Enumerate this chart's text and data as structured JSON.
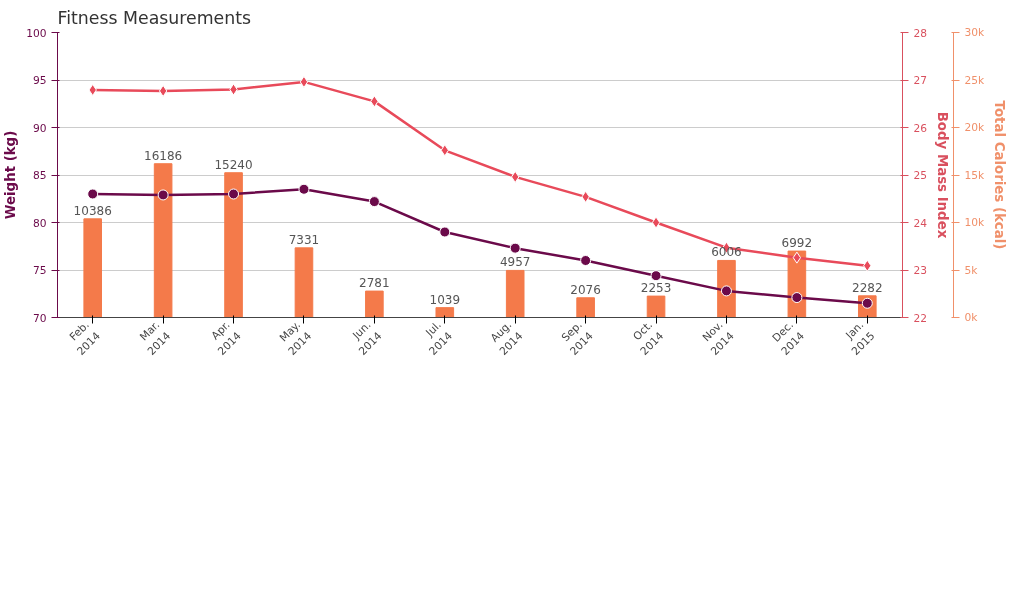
{
  "chart_data": {
    "type": "line",
    "title": "Fitness Measurements",
    "categories": [
      "Feb.\n2014",
      "Mar.\n2014",
      "Apr.\n2014",
      "May.\n2014",
      "Jun.\n2014",
      "Jul.\n2014",
      "Aug.\n2014",
      "Sep.\n2014",
      "Oct.\n2014",
      "Nov.\n2014",
      "Dec.\n2014",
      "Jan.\n2015"
    ],
    "ylabel": "Weight (kg)",
    "y2label": "Body Mass Index",
    "y3label": "Total Calories (kcal)",
    "ylim": [
      70,
      100
    ],
    "yticks": [
      70,
      75,
      80,
      85,
      90,
      95,
      100
    ],
    "y2lim": [
      22,
      28
    ],
    "y2ticks": [
      22,
      23,
      24,
      25,
      26,
      27,
      28
    ],
    "y3lim": [
      0,
      30000
    ],
    "y3ticks": [
      {
        "value": 0,
        "label": "0k"
      },
      {
        "value": 5000,
        "label": "5k"
      },
      {
        "value": 10000,
        "label": "10k"
      },
      {
        "value": 15000,
        "label": "15k"
      },
      {
        "value": 20000,
        "label": "20k"
      },
      {
        "value": 25000,
        "label": "25k"
      },
      {
        "value": 30000,
        "label": "30k"
      }
    ],
    "grid": "y",
    "series": [
      {
        "type": "bar",
        "axis": "y3",
        "color": "#f47a4a",
        "values": [
          10386,
          16186,
          15240,
          7331,
          2781,
          1039,
          4957,
          2076,
          2253,
          6006,
          6992,
          2282
        ],
        "value_labels": [
          "10386",
          "16186",
          "15240",
          "7331",
          "2781",
          "1039",
          "4957",
          "2076",
          "2253",
          "6006",
          "6992",
          "2282"
        ]
      },
      {
        "axis": "y",
        "color": "#6b0a4a",
        "marker": "circle",
        "values": [
          83.0,
          82.9,
          83.0,
          83.5,
          82.2,
          79.0,
          77.3,
          76.0,
          74.4,
          72.8,
          72.1,
          71.5
        ]
      },
      {
        "axis": "y2",
        "color": "#e84a5a",
        "marker": "diamond",
        "values": [
          26.79,
          26.77,
          26.8,
          26.96,
          26.55,
          25.52,
          24.96,
          24.54,
          24.0,
          23.47,
          23.26,
          23.09
        ]
      }
    ]
  }
}
